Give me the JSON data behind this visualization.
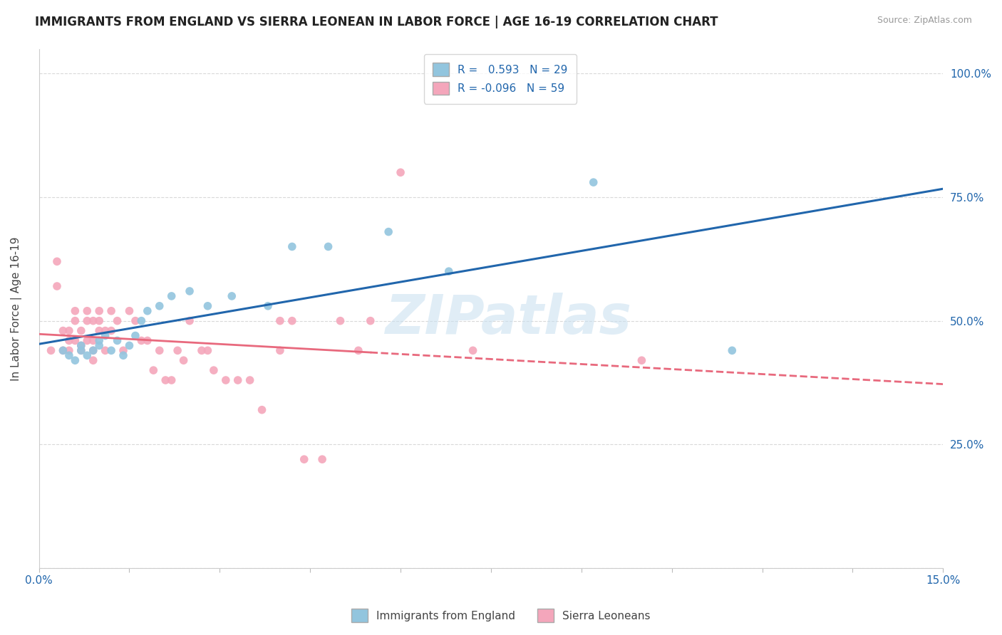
{
  "title": "IMMIGRANTS FROM ENGLAND VS SIERRA LEONEAN IN LABOR FORCE | AGE 16-19 CORRELATION CHART",
  "source": "Source: ZipAtlas.com",
  "ylabel": "In Labor Force | Age 16-19",
  "xlim": [
    0.0,
    0.15
  ],
  "ylim": [
    0.0,
    1.05
  ],
  "R_england": 0.593,
  "N_england": 29,
  "R_sierra": -0.096,
  "N_sierra": 59,
  "england_color": "#92c5de",
  "sierra_color": "#f4a6bb",
  "england_line_color": "#2166ac",
  "sierra_line_color": "#e8697d",
  "background_color": "#ffffff",
  "grid_color": "#d9d9d9",
  "watermark": "ZIPatlas",
  "england_scatter_x": [
    0.004,
    0.005,
    0.006,
    0.007,
    0.007,
    0.008,
    0.009,
    0.01,
    0.01,
    0.011,
    0.012,
    0.013,
    0.014,
    0.015,
    0.016,
    0.017,
    0.018,
    0.02,
    0.022,
    0.025,
    0.028,
    0.032,
    0.038,
    0.042,
    0.048,
    0.058,
    0.068,
    0.092,
    0.115
  ],
  "england_scatter_y": [
    0.44,
    0.43,
    0.42,
    0.44,
    0.45,
    0.43,
    0.44,
    0.46,
    0.45,
    0.47,
    0.44,
    0.46,
    0.43,
    0.45,
    0.47,
    0.5,
    0.52,
    0.53,
    0.55,
    0.56,
    0.53,
    0.55,
    0.53,
    0.65,
    0.65,
    0.68,
    0.6,
    0.78,
    0.44
  ],
  "sierra_scatter_x": [
    0.002,
    0.003,
    0.003,
    0.004,
    0.004,
    0.005,
    0.005,
    0.005,
    0.006,
    0.006,
    0.006,
    0.007,
    0.007,
    0.007,
    0.008,
    0.008,
    0.008,
    0.009,
    0.009,
    0.009,
    0.009,
    0.01,
    0.01,
    0.01,
    0.011,
    0.011,
    0.012,
    0.012,
    0.013,
    0.014,
    0.015,
    0.016,
    0.017,
    0.018,
    0.019,
    0.02,
    0.021,
    0.022,
    0.023,
    0.024,
    0.025,
    0.027,
    0.028,
    0.029,
    0.031,
    0.033,
    0.035,
    0.037,
    0.04,
    0.04,
    0.042,
    0.044,
    0.047,
    0.05,
    0.053,
    0.055,
    0.06,
    0.072,
    0.1
  ],
  "sierra_scatter_y": [
    0.44,
    0.57,
    0.62,
    0.44,
    0.48,
    0.44,
    0.48,
    0.46,
    0.5,
    0.52,
    0.46,
    0.44,
    0.48,
    0.45,
    0.5,
    0.52,
    0.46,
    0.44,
    0.5,
    0.46,
    0.42,
    0.52,
    0.5,
    0.48,
    0.48,
    0.44,
    0.52,
    0.48,
    0.5,
    0.44,
    0.52,
    0.5,
    0.46,
    0.46,
    0.4,
    0.44,
    0.38,
    0.38,
    0.44,
    0.42,
    0.5,
    0.44,
    0.44,
    0.4,
    0.38,
    0.38,
    0.38,
    0.32,
    0.5,
    0.44,
    0.5,
    0.22,
    0.22,
    0.5,
    0.44,
    0.5,
    0.8,
    0.44,
    0.42
  ]
}
